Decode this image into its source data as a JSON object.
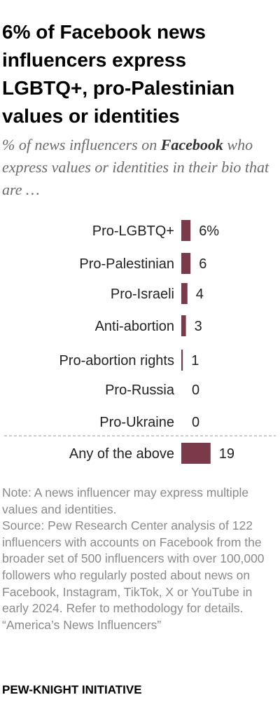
{
  "title": "6% of Facebook news influencers express LGBTQ+, pro-Palestinian values or identities",
  "subtitle": {
    "pre": "% of news influencers on ",
    "platform": "Facebook",
    "post": " who express values or identities in their bio that are …"
  },
  "chart_data": {
    "type": "bar",
    "orientation": "horizontal",
    "categories": [
      "Pro-LGBTQ+",
      "Pro-Palestinian",
      "Pro-Israeli",
      "Anti-abortion",
      "Pro-abortion rights",
      "Pro-Russia",
      "Pro-Ukraine",
      "Any of the above"
    ],
    "values": [
      6,
      6,
      4,
      3,
      1,
      0,
      0,
      19
    ],
    "value_labels": [
      "6%",
      "6",
      "4",
      "3",
      "1",
      "0",
      "0",
      "19"
    ],
    "unit": "%",
    "bar_color": "#7b3a4a",
    "separator_before": "Any of the above",
    "grid": false,
    "legend": "none"
  },
  "notes": [
    "Note: A news influencer may express multiple values and identities.",
    "Source: Pew Research Center analysis of 122 influencers with accounts on Facebook from the broader set of 500 influencers with over 100,000 followers who regularly posted about news on Facebook, Instagram, TikTok, X or YouTube in early 2024. Refer to methodology for details.",
    "“America’s News Influencers”"
  ],
  "brand": "PEW-KNIGHT INITIATIVE"
}
